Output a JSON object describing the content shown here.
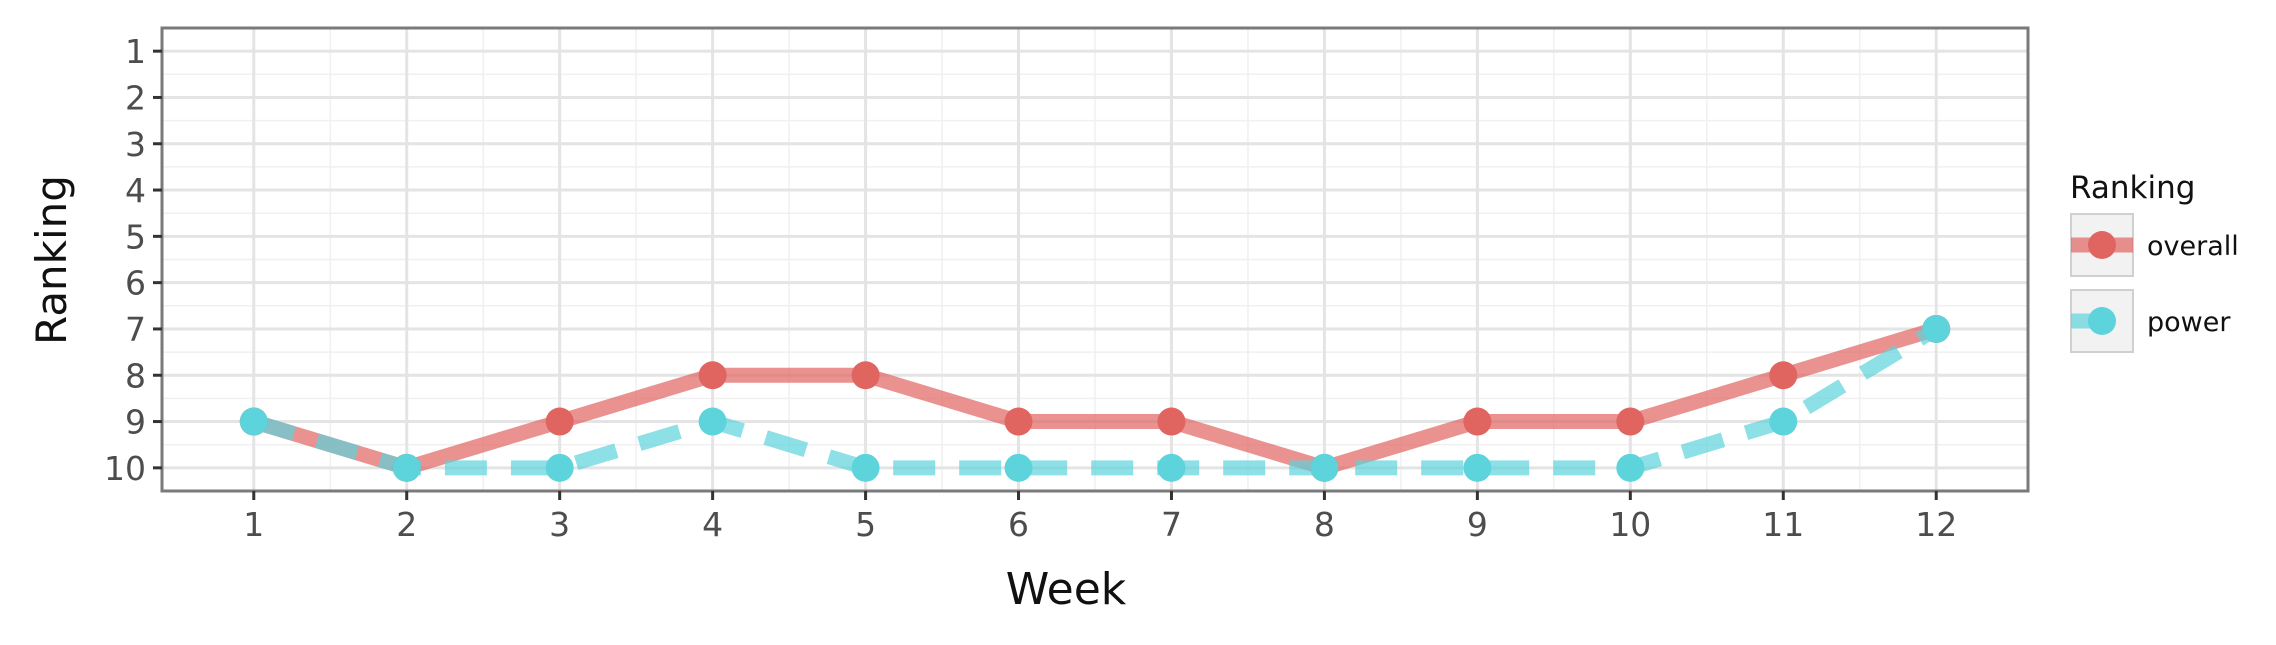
{
  "chart_data": {
    "type": "line",
    "x": [
      1,
      2,
      3,
      4,
      5,
      6,
      7,
      8,
      9,
      10,
      11,
      12
    ],
    "x_ticks": [
      "1",
      "2",
      "3",
      "4",
      "5",
      "6",
      "7",
      "8",
      "9",
      "10",
      "11",
      "12"
    ],
    "y_ticks": [
      "1",
      "2",
      "3",
      "4",
      "5",
      "6",
      "7",
      "8",
      "9",
      "10"
    ],
    "series": [
      {
        "name": "overall",
        "values": [
          9,
          10,
          9,
          8,
          8,
          9,
          9,
          10,
          9,
          9,
          8,
          7
        ],
        "color": "#E06460",
        "line_style": "solid"
      },
      {
        "name": "power",
        "values": [
          9,
          10,
          10,
          9,
          10,
          10,
          10,
          10,
          10,
          10,
          9,
          7
        ],
        "color": "#5DD3DB",
        "line_style": "dashed"
      }
    ],
    "title": "",
    "xlabel": "Week",
    "ylabel": "Ranking",
    "xlim": [
      0.4,
      12.6
    ],
    "ylim": [
      10.5,
      0.5
    ],
    "y_reversed": true,
    "grid": true,
    "legend": {
      "title": "Ranking",
      "placement": "right"
    }
  }
}
